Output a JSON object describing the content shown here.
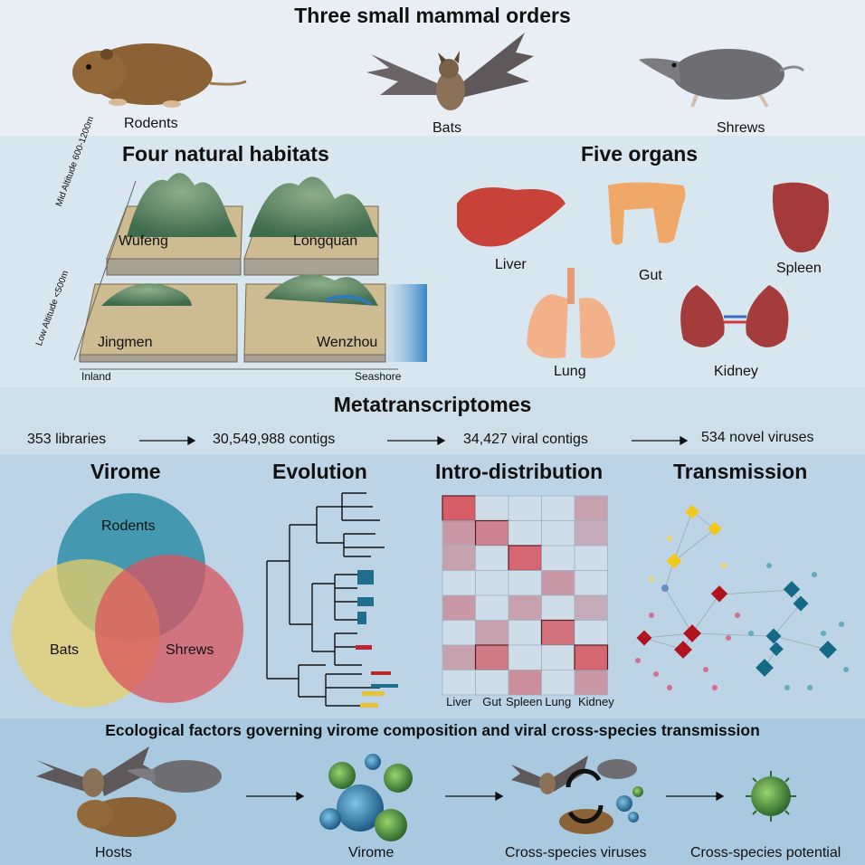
{
  "section1": {
    "title": "Three small mammal orders",
    "animals": [
      "Rodents",
      "Bats",
      "Shrews"
    ]
  },
  "section2": {
    "habitats_title": "Four natural habitats",
    "habitats": [
      "Wufeng",
      "Longquan",
      "Jingmen",
      "Wenzhou"
    ],
    "mid_altitude": "Mid Altitude",
    "mid_altitude_range": "600-1200m",
    "low_altitude": "Low Altitude",
    "low_altitude_range": "<500m",
    "inland": "Inland",
    "seashore": "Seashore",
    "organs_title": "Five organs",
    "organs": [
      "Liver",
      "Gut",
      "Spleen",
      "Lung",
      "Kidney"
    ]
  },
  "section3": {
    "title": "Metatranscriptomes",
    "flow": [
      "353 libraries",
      "30,549,988 contigs",
      "34,427 viral contigs",
      "534 novel viruses"
    ]
  },
  "section4": {
    "virome_title": "Virome",
    "venn": [
      "Rodents",
      "Bats",
      "Shrews"
    ],
    "evolution_title": "Evolution",
    "distribution_title": "Intro-distribution",
    "heatmap_cols": [
      "Liver",
      "Gut",
      "Spleen",
      "Lung",
      "Kidney"
    ],
    "transmission_title": "Transmission"
  },
  "section5": {
    "title": "Ecological factors governing virome composition and viral cross-species transmission",
    "steps": [
      "Hosts",
      "Virome",
      "Cross-species viruses",
      "Cross-species potential"
    ]
  },
  "colors": {
    "rodent": "#2f8ea6",
    "bat": "#e8cf6a",
    "shrew": "#d9535e",
    "heat": "#d9545d"
  },
  "heatmap": [
    [
      0.9,
      0,
      0,
      0,
      0.2
    ],
    [
      0.3,
      0.5,
      0,
      0,
      0.1
    ],
    [
      0.2,
      0,
      0.8,
      0,
      0
    ],
    [
      0,
      0,
      0,
      0.3,
      0
    ],
    [
      0.3,
      0,
      0.2,
      0,
      0.1
    ],
    [
      0,
      0.2,
      0,
      0.7,
      0
    ],
    [
      0.2,
      0.6,
      0,
      0,
      0.8
    ],
    [
      0,
      0,
      0.4,
      0,
      0.3
    ]
  ]
}
